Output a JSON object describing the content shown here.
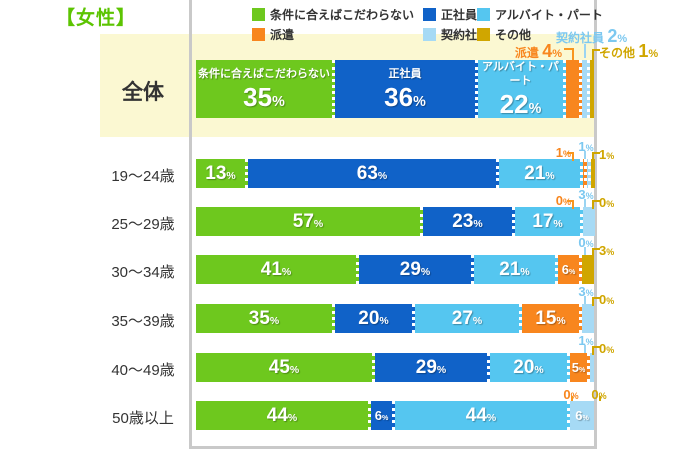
{
  "title": "【女性】",
  "unit": "%",
  "colors": {
    "title_green": "#5CC402",
    "frame_gray": "#C9C9C9",
    "highlight_bg": "#FBF8D2",
    "label_text": "#333333",
    "callout_text": {
      "haken": "#F8861E",
      "keiyaku": "#7CC8F0",
      "sonota": "#D0A600"
    },
    "callout_line": {
      "haken": "#F8961E",
      "keiyaku": "#9AD4F2",
      "sonota": "#D0A600"
    }
  },
  "legend": {
    "items": [
      {
        "id": "conditional",
        "label": "条件に合えばこだわらない",
        "color": "#6EC81E"
      },
      {
        "id": "seishain",
        "label": "正社員",
        "color": "#1062C8"
      },
      {
        "id": "arbeit",
        "label": "アルバイト・パート",
        "color": "#55C6F0"
      },
      {
        "id": "haken",
        "label": "派遣",
        "color": "#F8861E"
      },
      {
        "id": "keiyaku",
        "label": "契約社員",
        "color": "#A6DAF5"
      },
      {
        "id": "sonota",
        "label": "その他",
        "color": "#D0A600"
      }
    ]
  },
  "chart_data": {
    "type": "bar",
    "orientation": "horizontal-stacked",
    "title": "【女性】",
    "unit": "%",
    "xlim": [
      0,
      100
    ],
    "series": [
      "条件に合えばこだわらない",
      "正社員",
      "アルバイト・パート",
      "派遣",
      "契約社員",
      "その他"
    ],
    "series_ids": [
      "conditional",
      "seishain",
      "arbeit",
      "haken",
      "keiyaku",
      "sonota"
    ],
    "series_colors": [
      "#6EC81E",
      "#1062C8",
      "#55C6F0",
      "#F8861E",
      "#A6DAF5",
      "#D0A600"
    ],
    "rows": [
      {
        "category": "全体",
        "highlight": true,
        "in_bar_names": true,
        "values": [
          35,
          36,
          22,
          4,
          2,
          1
        ],
        "callouts": [
          {
            "series": 3,
            "label": "派遣",
            "value": 4
          },
          {
            "series": 4,
            "label": "契約社員",
            "value": 2
          },
          {
            "series": 5,
            "label": "その他",
            "value": 1
          }
        ]
      },
      {
        "category": "19〜24歳",
        "values": [
          13,
          63,
          21,
          1,
          1,
          1
        ],
        "callouts": [
          {
            "series": 3,
            "value": 1
          },
          {
            "series": 4,
            "value": 1
          },
          {
            "series": 5,
            "value": 1
          }
        ]
      },
      {
        "category": "25〜29歳",
        "values": [
          57,
          23,
          17,
          0,
          3,
          0
        ],
        "callouts": [
          {
            "series": 3,
            "value": 0
          },
          {
            "series": 4,
            "value": 3
          },
          {
            "series": 5,
            "value": 0
          }
        ]
      },
      {
        "category": "30〜34歳",
        "values": [
          41,
          29,
          21,
          6,
          0,
          3
        ],
        "callouts": [
          {
            "series": 4,
            "value": 0
          },
          {
            "series": 5,
            "value": 3
          }
        ]
      },
      {
        "category": "35〜39歳",
        "values": [
          35,
          20,
          27,
          15,
          3,
          0
        ],
        "callouts": [
          {
            "series": 4,
            "value": 3
          },
          {
            "series": 5,
            "value": 0
          }
        ]
      },
      {
        "category": "40〜49歳",
        "values": [
          45,
          29,
          20,
          5,
          1,
          0
        ],
        "callouts": [
          {
            "series": 4,
            "value": 1
          },
          {
            "series": 5,
            "value": 0
          }
        ]
      },
      {
        "category": "50歳以上",
        "values": [
          44,
          6,
          44,
          0,
          6,
          0
        ],
        "callouts": [
          {
            "series": 3,
            "value": 0,
            "style": "tick"
          },
          {
            "series": 5,
            "value": 0,
            "style": "tick"
          }
        ]
      }
    ]
  }
}
